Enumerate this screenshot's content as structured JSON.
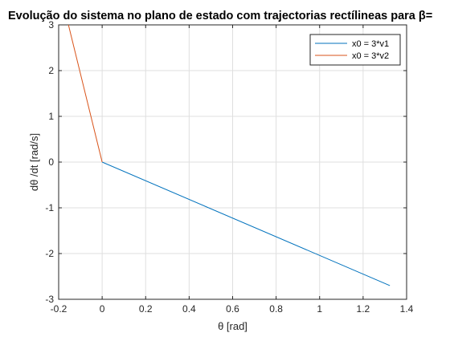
{
  "chart_data": {
    "type": "line",
    "title": "Evolução do sistema no plano de estado com trajectorias rectílineas para β=",
    "xlabel": "θ   [rad]",
    "ylabel": "dθ /dt    [rad/s]",
    "xlim": [
      -0.2,
      1.4
    ],
    "ylim": [
      -3,
      3
    ],
    "xticks": [
      "-0.2",
      "0",
      "0.2",
      "0.4",
      "0.6",
      "0.8",
      "1",
      "1.2",
      "1.4"
    ],
    "yticks": [
      "-3",
      "-2",
      "-1",
      "0",
      "1",
      "2",
      "3"
    ],
    "grid": true,
    "legend_position": "top-right",
    "series": [
      {
        "name": "x0 = 3*v1",
        "color": "#0072BD",
        "x": [
          1.323,
          0
        ],
        "y": [
          -2.7,
          0
        ]
      },
      {
        "name": "x0 = 3*v2",
        "color": "#D95319",
        "x": [
          -0.155,
          0
        ],
        "y": [
          3.0,
          0
        ]
      }
    ]
  }
}
